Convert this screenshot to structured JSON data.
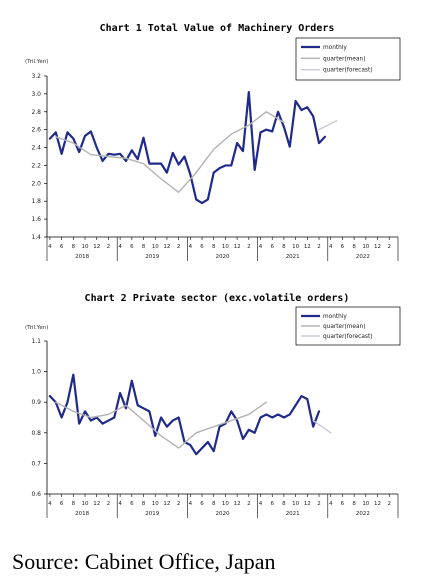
{
  "source_text": "Source: Cabinet Office, Japan",
  "colors": {
    "monthly": "#1f2a8c",
    "quarter_mean": "#b3b3b3",
    "quarter_forecast": "#c9c9d6",
    "axis": "#000000"
  },
  "chart_data": [
    {
      "type": "line",
      "title": "Chart 1 Total Value of Machinery Orders",
      "unit_label": "(Tril.Yen)",
      "ylim": [
        1.4,
        3.2
      ],
      "y_ticks": [
        "1.4",
        "1.6",
        "1.8",
        "2.0",
        "2.2",
        "2.4",
        "2.6",
        "2.8",
        "3.0",
        "3.2"
      ],
      "month_ticks": [
        "4",
        "6",
        "8",
        "10",
        "12",
        "2",
        "4",
        "6",
        "8",
        "10",
        "12",
        "2",
        "4",
        "6",
        "8",
        "10",
        "12",
        "2",
        "4",
        "6",
        "8",
        "10",
        "12",
        "2",
        "4",
        "6",
        "8",
        "10",
        "12",
        "2"
      ],
      "year_labels": [
        "2018",
        "2019",
        "2020",
        "2021",
        "2022"
      ],
      "legend": [
        "monthly",
        "quarter(mean)",
        "quarter(forecast)"
      ],
      "legend_position": "top-right",
      "grid": false,
      "series": [
        {
          "name": "monthly",
          "start_index": 0,
          "values": [
            2.5,
            2.57,
            2.33,
            2.57,
            2.5,
            2.35,
            2.53,
            2.58,
            2.4,
            2.25,
            2.33,
            2.32,
            2.33,
            2.25,
            2.37,
            2.27,
            2.51,
            2.22,
            2.22,
            2.22,
            2.12,
            2.34,
            2.21,
            2.3,
            2.1,
            1.82,
            1.78,
            1.82,
            2.12,
            2.17,
            2.2,
            2.2,
            2.45,
            2.36,
            3.02,
            2.15,
            2.57,
            2.6,
            2.58,
            2.8,
            2.63,
            2.41,
            2.92,
            2.82,
            2.85,
            2.75,
            2.45,
            2.52
          ]
        },
        {
          "name": "quarter(mean)",
          "start_index": 1,
          "values": [
            2.52,
            2.45,
            2.32,
            2.3,
            2.28,
            2.22,
            2.05,
            1.9,
            2.12,
            2.38,
            2.55,
            2.65,
            2.8,
            2.68
          ]
        },
        {
          "name": "quarter(forecast)",
          "start_index": 46,
          "values": [
            2.6,
            2.7
          ]
        }
      ]
    },
    {
      "type": "line",
      "title": "Chart 2 Private sector (exc.volatile orders)",
      "unit_label": "(Tril.Yen)",
      "ylim": [
        0.6,
        1.1
      ],
      "y_ticks": [
        "0.6",
        "0.7",
        "0.8",
        "0.9",
        "1.0",
        "1.1"
      ],
      "month_ticks": [
        "4",
        "6",
        "8",
        "10",
        "12",
        "2",
        "4",
        "6",
        "8",
        "10",
        "12",
        "2",
        "4",
        "6",
        "8",
        "10",
        "12",
        "2",
        "4",
        "6",
        "8",
        "10",
        "12",
        "2",
        "4",
        "6",
        "8",
        "10",
        "12",
        "2"
      ],
      "year_labels": [
        "2018",
        "2019",
        "2020",
        "2021",
        "2022"
      ],
      "legend": [
        "monthly",
        "quarter(mean)",
        "quarter(forecast)"
      ],
      "legend_position": "top-right",
      "grid": false,
      "series": [
        {
          "name": "monthly",
          "start_index": 0,
          "values": [
            0.92,
            0.9,
            0.85,
            0.9,
            0.99,
            0.83,
            0.87,
            0.84,
            0.85,
            0.83,
            0.84,
            0.85,
            0.93,
            0.88,
            0.97,
            0.89,
            0.88,
            0.87,
            0.79,
            0.85,
            0.82,
            0.84,
            0.85,
            0.77,
            0.76,
            0.73,
            0.75,
            0.77,
            0.74,
            0.82,
            0.83,
            0.87,
            0.84,
            0.78,
            0.81,
            0.8,
            0.85,
            0.86,
            0.85,
            0.86,
            0.85,
            0.86,
            0.89,
            0.92,
            0.91,
            0.82,
            0.87
          ]
        },
        {
          "name": "quarter(mean)",
          "start_index": 1,
          "values": [
            0.9,
            0.87,
            0.85,
            0.86,
            0.89,
            0.84,
            0.79,
            0.75,
            0.8,
            0.82,
            0.84,
            0.86,
            0.9
          ]
        },
        {
          "name": "quarter(forecast)",
          "start_index": 45,
          "values": [
            0.84,
            0.8
          ]
        }
      ]
    }
  ]
}
